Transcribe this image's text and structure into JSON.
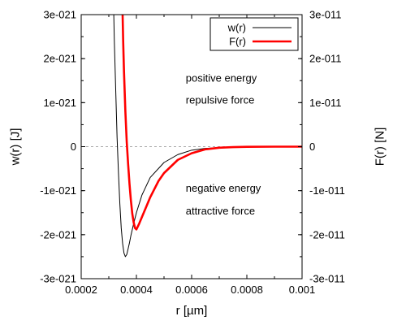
{
  "chart_data": {
    "type": "line",
    "xlabel": "r [µm]",
    "ylabel_left": "w(r) [J]",
    "ylabel_right": "F(r) [N]",
    "xlim": [
      0.0002,
      0.001
    ],
    "ylim_left": [
      -3e-21,
      3e-21
    ],
    "ylim_right": [
      -3e-11,
      3e-11
    ],
    "x_ticks": [
      "0.0002",
      "0.0004",
      "0.0006",
      "0.0008",
      "0.001"
    ],
    "y_ticks_left": [
      "3e-021",
      "2e-021",
      "1e-021",
      "0",
      "-1e-021",
      "-2e-021",
      "-3e-021"
    ],
    "y_ticks_right": [
      "3e-011",
      "2e-011",
      "1e-011",
      "0",
      "-1e-011",
      "-2e-011",
      "-3e-011"
    ],
    "zero_line": "dashed",
    "legend_position": "top-right",
    "series": [
      {
        "name": "w(r)",
        "axis": "left",
        "color": "#000000",
        "x": [
          0.000318,
          0.00032,
          0.000325,
          0.00033,
          0.000335,
          0.00034,
          0.000345,
          0.00035,
          0.000355,
          0.00036,
          0.000365,
          0.00037,
          0.000375,
          0.00038,
          0.00039,
          0.0004,
          0.00042,
          0.00045,
          0.0005,
          0.00055,
          0.0006,
          0.00065,
          0.0007,
          0.0008,
          0.0009,
          0.001
        ],
        "y": [
          3e-21,
          2.4e-21,
          1.3e-21,
          2e-22,
          -6e-22,
          -1.3e-21,
          -1.85e-21,
          -2.2e-21,
          -2.42e-21,
          -2.5e-21,
          -2.45e-21,
          -2.32e-21,
          -2.18e-21,
          -2.02e-21,
          -1.75e-21,
          -1.5e-21,
          -1.1e-21,
          -7e-22,
          -3.6e-22,
          -1.8e-22,
          -8e-23,
          -4e-23,
          -2e-23,
          -5e-24,
          -1e-24,
          0
        ]
      },
      {
        "name": "F(r)",
        "axis": "right",
        "color": "#ff0000",
        "x": [
          0.00035,
          0.000352,
          0.000355,
          0.00036,
          0.000365,
          0.00037,
          0.000375,
          0.00038,
          0.000385,
          0.00039,
          0.000395,
          0.0004,
          0.00041,
          0.00042,
          0.00043,
          0.00045,
          0.00048,
          0.0005,
          0.00055,
          0.0006,
          0.00065,
          0.0007,
          0.00075,
          0.0008,
          0.0009,
          0.001
        ],
        "y": [
          3e-11,
          2.4e-11,
          1.7e-11,
          8e-12,
          1e-12,
          -4e-12,
          -8.5e-12,
          -1.22e-11,
          -1.52e-11,
          -1.72e-11,
          -1.85e-11,
          -1.88e-11,
          -1.75e-11,
          -1.6e-11,
          -1.45e-11,
          -1.15e-11,
          -7.8e-12,
          -6e-12,
          -3e-12,
          -1.5e-12,
          -6e-13,
          -2.5e-13,
          -1e-13,
          -4e-14,
          0,
          0
        ]
      }
    ],
    "annotations": [
      {
        "text": "positive energy",
        "x": 0.00062,
        "y_left": 1.55e-21
      },
      {
        "text": "repulsive force",
        "x": 0.00062,
        "y_left": 1.05e-21
      },
      {
        "text": "negative energy",
        "x": 0.00062,
        "y_left": -9.5e-22
      },
      {
        "text": "attractive force",
        "x": 0.00062,
        "y_left": -1.47e-21
      }
    ]
  }
}
